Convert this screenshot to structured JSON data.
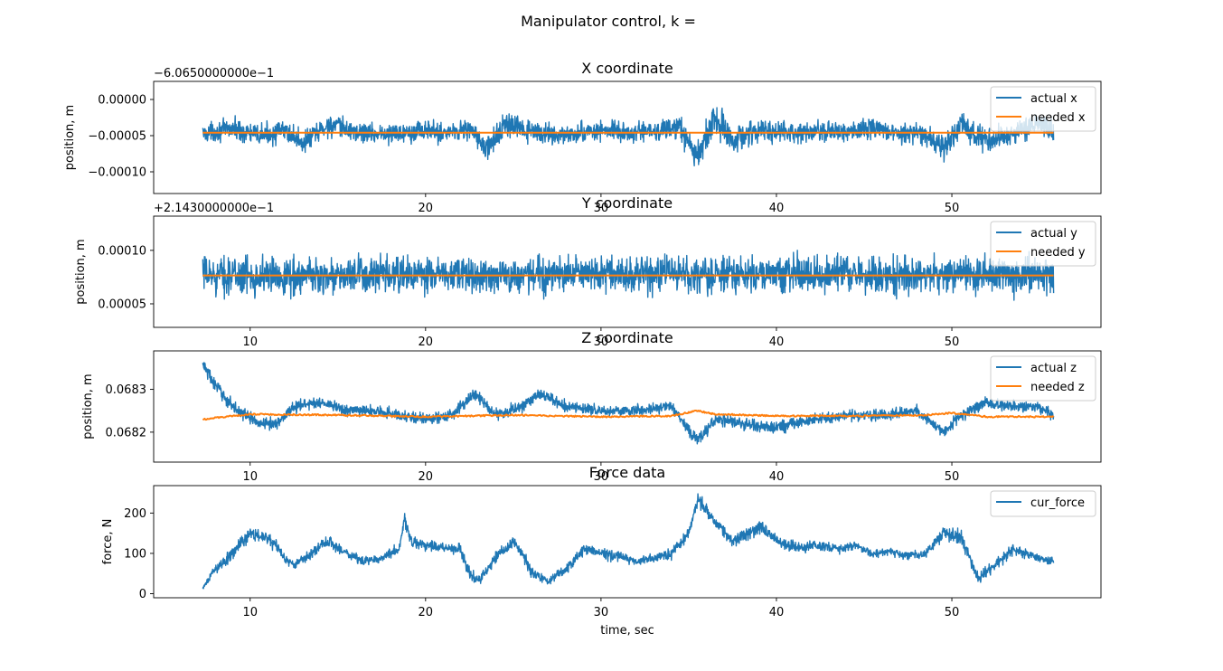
{
  "figure": {
    "title": "Manipulator control, k ="
  },
  "colors": {
    "series1": "#1f77b4",
    "series2": "#ff7f0e",
    "axes": "#000000",
    "legend_border": "#cccccc"
  },
  "chart_data": [
    {
      "type": "line",
      "title": "X coordinate",
      "xlabel": "",
      "ylabel": "position, m",
      "offset_text": "−6.0650000000e−1",
      "xlim": [
        4.5,
        58.5
      ],
      "ylim": [
        -0.00013,
        2.5e-05
      ],
      "x_ticks": [
        20,
        30,
        40,
        50
      ],
      "x_tick_labels": [
        "20",
        "30",
        "40",
        "50"
      ],
      "y_ticks": [
        -0.0001,
        -5e-05,
        0.0
      ],
      "y_tick_labels": [
        "−0.00010",
        "−0.00005",
        "0.00000"
      ],
      "legend": {
        "placement": "upper right",
        "entries": [
          "actual x",
          "needed x"
        ]
      },
      "series": [
        {
          "name": "actual x",
          "color": "#1f77b4",
          "x": [
            7.3,
            9,
            10.5,
            12,
            13,
            14.5,
            16,
            18,
            19.5,
            21,
            22.5,
            23.5,
            24.5,
            26,
            28,
            30,
            31.5,
            33,
            34.5,
            35.5,
            36.5,
            37.5,
            39,
            41,
            42.5,
            44,
            45.5,
            47,
            48,
            49.5,
            50.5,
            52,
            53.5,
            55,
            55.8
          ],
          "y": [
            -4.7e-05,
            -4e-05,
            -5e-05,
            -4.3e-05,
            -6e-05,
            -3.5e-05,
            -4.5e-05,
            -4.8e-05,
            -4.2e-05,
            -4.6e-05,
            -4e-05,
            -7e-05,
            -3.5e-05,
            -4.5e-05,
            -5e-05,
            -4.2e-05,
            -4.7e-05,
            -4.4e-05,
            -4e-05,
            -8e-05,
            -2.5e-05,
            -5.5e-05,
            -4.2e-05,
            -4.8e-05,
            -4.3e-05,
            -4.6e-05,
            -4e-05,
            -5e-05,
            -4.5e-05,
            -6.5e-05,
            -3.5e-05,
            -6e-05,
            -4.5e-05,
            -3.5e-05,
            -4.5e-05
          ],
          "band": [
            1.8e-05,
            2e-05,
            2.2e-05,
            2e-05,
            2.2e-05,
            2.4e-05,
            2e-05,
            2e-05,
            2.2e-05,
            2e-05,
            2.2e-05,
            2.5e-05,
            2.5e-05,
            2e-05,
            1.8e-05,
            2e-05,
            2e-05,
            2e-05,
            2.2e-05,
            3.5e-05,
            3.5e-05,
            2.5e-05,
            2e-05,
            2e-05,
            2e-05,
            2e-05,
            2.2e-05,
            2e-05,
            2e-05,
            2.5e-05,
            2.5e-05,
            2.5e-05,
            2e-05,
            2.5e-05,
            2e-05
          ]
        },
        {
          "name": "needed x",
          "color": "#ff7f0e",
          "x": [
            7.3,
            55.8
          ],
          "y": [
            -4.6e-05,
            -4.6e-05
          ]
        }
      ]
    },
    {
      "type": "line",
      "title": "Y coordinate",
      "xlabel": "",
      "ylabel": "position, m",
      "offset_text": "+2.1430000000e−1",
      "xlim": [
        4.5,
        58.5
      ],
      "ylim": [
        2.8e-05,
        0.000132
      ],
      "x_ticks": [
        10,
        20,
        30,
        40,
        50
      ],
      "x_tick_labels": [
        "10",
        "20",
        "30",
        "40",
        "50"
      ],
      "y_ticks": [
        5e-05,
        0.0001
      ],
      "y_tick_labels": [
        "0.00005",
        "0.00010"
      ],
      "legend": {
        "placement": "upper right",
        "entries": [
          "actual y",
          "needed y"
        ]
      },
      "series": [
        {
          "name": "actual y",
          "color": "#1f77b4",
          "x": [
            7.3,
            15,
            25,
            35,
            45,
            55.8
          ],
          "y": [
            7.7e-05,
            7.6e-05,
            7.7e-05,
            7.8e-05,
            7.7e-05,
            7.7e-05
          ],
          "band": [
            2.5e-05,
            2.5e-05,
            2.4e-05,
            2.5e-05,
            2.4e-05,
            2.5e-05
          ]
        },
        {
          "name": "needed y",
          "color": "#ff7f0e",
          "x": [
            7.3,
            55.8
          ],
          "y": [
            7.65e-05,
            7.65e-05
          ]
        }
      ]
    },
    {
      "type": "line",
      "title": "Z coordinate",
      "xlabel": "",
      "ylabel": "position, m",
      "offset_text": "",
      "xlim": [
        4.5,
        58.5
      ],
      "ylim": [
        0.06813,
        0.06839
      ],
      "x_ticks": [
        10,
        20,
        30,
        40,
        50
      ],
      "x_tick_labels": [
        "10",
        "20",
        "30",
        "40",
        "50"
      ],
      "y_ticks": [
        0.0682,
        0.0683
      ],
      "y_tick_labels": [
        "0.0682",
        "0.0683"
      ],
      "legend": {
        "placement": "upper right",
        "entries": [
          "actual z",
          "needed z"
        ]
      },
      "series": [
        {
          "name": "actual z",
          "color": "#1f77b4",
          "x": [
            7.3,
            8,
            9,
            10.5,
            11.5,
            12.5,
            14,
            15.5,
            17,
            18.5,
            20,
            21.5,
            22.8,
            24,
            25.5,
            26.5,
            28,
            30,
            32,
            34,
            35.5,
            36.5,
            38,
            40,
            42,
            44,
            46,
            48,
            49.5,
            50.5,
            52,
            53.5,
            55,
            55.8
          ],
          "y": [
            0.06836,
            0.06831,
            0.06826,
            0.06822,
            0.06822,
            0.06826,
            0.06827,
            0.06825,
            0.06825,
            0.06824,
            0.06823,
            0.06824,
            0.06829,
            0.06824,
            0.06826,
            0.06829,
            0.06826,
            0.06825,
            0.06825,
            0.06826,
            0.06818,
            0.06823,
            0.06822,
            0.06821,
            0.06823,
            0.06824,
            0.06824,
            0.06825,
            0.0682,
            0.06824,
            0.06827,
            0.06826,
            0.06826,
            0.06824
          ],
          "band": [
            2.5e-05,
            2.5e-05,
            2e-05,
            1.8e-05,
            2e-05,
            2e-05,
            2e-05,
            1.8e-05,
            1.8e-05,
            2e-05,
            2e-05,
            2e-05,
            2e-05,
            2e-05,
            2e-05,
            2e-05,
            1.8e-05,
            1.8e-05,
            1.8e-05,
            1.8e-05,
            2.5e-05,
            2e-05,
            2e-05,
            2e-05,
            1.8e-05,
            1.8e-05,
            1.8e-05,
            1.8e-05,
            2e-05,
            2e-05,
            2e-05,
            2e-05,
            2e-05,
            2e-05
          ]
        },
        {
          "name": "needed z",
          "color": "#ff7f0e",
          "x": [
            7.3,
            10,
            15,
            20,
            25,
            30,
            34,
            35.5,
            36.5,
            40,
            45,
            48.5,
            50,
            52,
            55.8
          ],
          "y": [
            0.06823,
            0.068242,
            0.06824,
            0.068236,
            0.06824,
            0.068236,
            0.068238,
            0.06825,
            0.068242,
            0.068238,
            0.068238,
            0.06824,
            0.068245,
            0.068236,
            0.068236
          ]
        }
      ]
    },
    {
      "type": "line",
      "title": "Force data",
      "xlabel": "time, sec",
      "ylabel": "force, N",
      "offset_text": "",
      "xlim": [
        4.5,
        58.5
      ],
      "ylim": [
        -10,
        268
      ],
      "x_ticks": [
        10,
        20,
        30,
        40,
        50
      ],
      "x_tick_labels": [
        "10",
        "20",
        "30",
        "40",
        "50"
      ],
      "y_ticks": [
        0,
        100,
        200
      ],
      "y_tick_labels": [
        "0",
        "100",
        "200"
      ],
      "legend": {
        "placement": "upper right",
        "entries": [
          "cur_force"
        ]
      },
      "series": [
        {
          "name": "cur_force",
          "color": "#1f77b4",
          "x": [
            7.3,
            7.8,
            8.5,
            9.2,
            10,
            10.8,
            11.5,
            12,
            12.5,
            13.5,
            14.5,
            15.5,
            16.5,
            17.5,
            18.5,
            18.8,
            19.2,
            20,
            21,
            22,
            22.5,
            23,
            24,
            25,
            25.5,
            26,
            27,
            28,
            29,
            30,
            31,
            32,
            33,
            34,
            35,
            35.5,
            36,
            36.5,
            37.5,
            38.5,
            39,
            39.5,
            40.5,
            41.5,
            42.5,
            43.5,
            44.5,
            45.5,
            46.5,
            47.5,
            48.5,
            49.5,
            50.5,
            51,
            51.5,
            52.5,
            53.5,
            54.5,
            55.8
          ],
          "y": [
            10,
            50,
            80,
            110,
            150,
            140,
            120,
            85,
            70,
            100,
            130,
            100,
            80,
            90,
            110,
            190,
            125,
            120,
            115,
            110,
            50,
            30,
            90,
            130,
            100,
            55,
            30,
            60,
            110,
            100,
            95,
            80,
            90,
            100,
            150,
            230,
            210,
            180,
            130,
            150,
            170,
            150,
            120,
            115,
            120,
            110,
            120,
            100,
            105,
            95,
            100,
            150,
            140,
            90,
            35,
            75,
            110,
            95,
            80
          ],
          "band": [
            10,
            15,
            20,
            25,
            25,
            20,
            20,
            15,
            15,
            20,
            20,
            20,
            15,
            15,
            20,
            25,
            20,
            20,
            20,
            20,
            20,
            20,
            20,
            25,
            20,
            20,
            15,
            20,
            20,
            20,
            20,
            15,
            15,
            20,
            20,
            25,
            25,
            25,
            20,
            25,
            25,
            20,
            20,
            20,
            20,
            15,
            15,
            15,
            15,
            15,
            15,
            25,
            25,
            20,
            20,
            20,
            20,
            15,
            15
          ]
        }
      ]
    }
  ]
}
